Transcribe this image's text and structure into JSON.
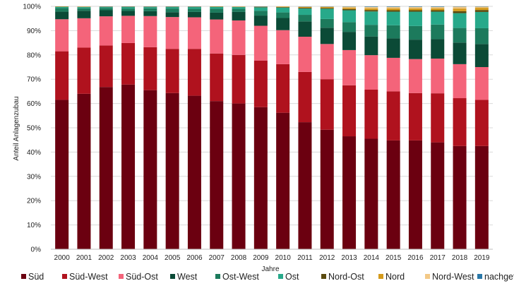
{
  "chart_data": {
    "type": "bar",
    "stacked": true,
    "title": "",
    "xlabel": "Jahre",
    "ylabel": "Anteil Anlagenzubau",
    "ylim": [
      0,
      100
    ],
    "yticks": [
      "0%",
      "10%",
      "20%",
      "30%",
      "40%",
      "50%",
      "60%",
      "70%",
      "80%",
      "90%",
      "100%"
    ],
    "grid": true,
    "legend_position": "bottom",
    "categories": [
      "2000",
      "2001",
      "2002",
      "2003",
      "2004",
      "2005",
      "2006",
      "2007",
      "2008",
      "2009",
      "2010",
      "2011",
      "2012",
      "2013",
      "2014",
      "2015",
      "2016",
      "2017",
      "2018",
      "2019"
    ],
    "series": [
      {
        "name": "Süd",
        "color": "#6b0010",
        "values": [
          61.5,
          64,
          66.8,
          67.8,
          65.5,
          64.3,
          63.2,
          61,
          60,
          58.5,
          56.2,
          52.3,
          49.2,
          46.5,
          45.5,
          44.8,
          44.8,
          44,
          42.5,
          42.5
        ]
      },
      {
        "name": "Süd-West",
        "color": "#b0121e",
        "values": [
          20,
          19,
          17.1,
          17.1,
          17.7,
          18.2,
          19.3,
          19.6,
          20,
          19.2,
          20,
          20.7,
          20.8,
          21,
          20.2,
          20.2,
          19.5,
          20.2,
          19.7,
          19
        ]
      },
      {
        "name": "Süd-Ost",
        "color": "#f4647a",
        "values": [
          13.2,
          12.1,
          12,
          11.2,
          12.8,
          13.1,
          13,
          14,
          14.2,
          14.3,
          14,
          14.5,
          14.5,
          14.5,
          14.2,
          13.8,
          14,
          14.3,
          14,
          13.5
        ]
      },
      {
        "name": "West",
        "color": "#0b4a36",
        "values": [
          3.1,
          3.1,
          2.5,
          2,
          2,
          2,
          2.2,
          2.8,
          3.5,
          4.2,
          5,
          6.3,
          6.7,
          7.5,
          7.7,
          8,
          8,
          8,
          8.9,
          9.5
        ]
      },
      {
        "name": "Ost-West",
        "color": "#1c7a5c",
        "values": [
          1.5,
          1,
          0.9,
          1,
          1.2,
          1.5,
          1.3,
          1.6,
          1.3,
          2,
          2.3,
          2.7,
          3.6,
          4,
          4.8,
          5.4,
          5.6,
          6,
          6,
          6.5
        ]
      },
      {
        "name": "Ost",
        "color": "#27a98a",
        "values": [
          0.5,
          0.5,
          0.4,
          0.6,
          0.5,
          0.6,
          0.7,
          0.8,
          0.7,
          1.4,
          2,
          2.6,
          4.2,
          4.9,
          5.5,
          5.6,
          5.9,
          5.3,
          6.1,
          6.7
        ]
      },
      {
        "name": "Nord-Ost",
        "color": "#5a4a0e",
        "values": [
          0.1,
          0.1,
          0.1,
          0.1,
          0.1,
          0.1,
          0.1,
          0.1,
          0.1,
          0.2,
          0.2,
          0.3,
          0.3,
          0.5,
          0.6,
          0.6,
          0.6,
          0.6,
          0.8,
          0.8
        ]
      },
      {
        "name": "Nord",
        "color": "#d49a1c",
        "values": [
          0.1,
          0.1,
          0.1,
          0.1,
          0.1,
          0.1,
          0.1,
          0.1,
          0.1,
          0.1,
          0.2,
          0.3,
          0.4,
          0.5,
          0.7,
          0.8,
          0.8,
          0.8,
          1.1,
          0.9
        ]
      },
      {
        "name": "Nord-West",
        "color": "#f3c987",
        "values": [
          0,
          0,
          0,
          0,
          0,
          0,
          0,
          0,
          0,
          0,
          0.1,
          0.2,
          0.2,
          0.5,
          0.6,
          0.6,
          0.6,
          0.6,
          0.8,
          0.5
        ]
      },
      {
        "name": "nachgeführt",
        "color": "#2a78a8",
        "values": [
          0,
          0,
          0.1,
          0.1,
          0.1,
          0.1,
          0.1,
          0,
          0,
          0.1,
          0,
          0.1,
          0.1,
          0.1,
          0.2,
          0.2,
          0.2,
          0.2,
          0.1,
          0.1
        ]
      }
    ]
  }
}
